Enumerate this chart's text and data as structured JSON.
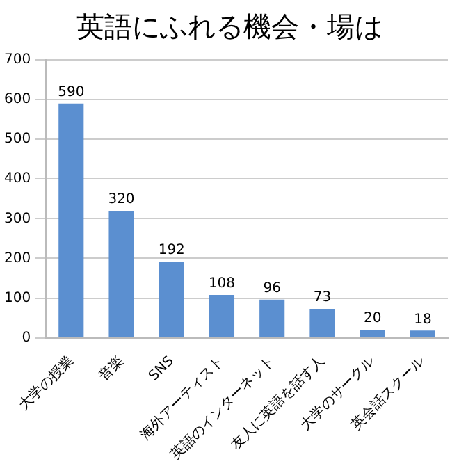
{
  "chart_data": {
    "type": "bar",
    "title": "英語にふれる機会・場は",
    "categories": [
      "大学の授業",
      "音楽",
      "SNS",
      "海外アーティスト",
      "英語のインターネット",
      "友人に英語を話す人",
      "大学のサークル",
      "英会話スクール"
    ],
    "values": [
      590,
      320,
      192,
      108,
      96,
      73,
      20,
      18
    ],
    "color": "#5b8fd0",
    "ylim": [
      0,
      700
    ],
    "yticks": [
      0,
      100,
      200,
      300,
      400,
      500,
      600,
      700
    ],
    "grid": "y",
    "data_labels": true,
    "legend": false
  }
}
